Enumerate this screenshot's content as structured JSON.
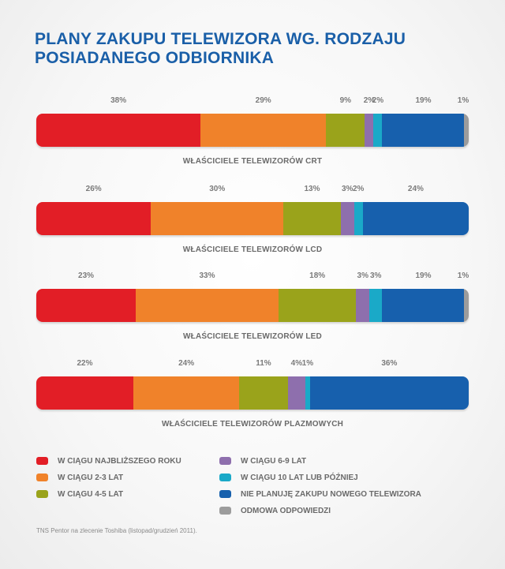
{
  "title": "PLANY ZAKUPU TELEWIZORA WG. RODZAJU POSIADANEGO ODBIORNIKA",
  "source": "TNS Pentor na zlecenie Toshiba (listopad/grudzień 2011).",
  "chart_data": {
    "type": "bar",
    "orientation": "horizontal-stacked",
    "unit": "%",
    "title": "PLANY ZAKUPU TELEWIZORA WG. RODZAJU POSIADANEGO ODBIORNIKA",
    "series_names": [
      "W CIĄGU NAJBLIŻSZEGO ROKU",
      "W CIĄGU 2-3 LAT",
      "W CIĄGU 4-5 LAT",
      "W CIĄGU 6-9 LAT",
      "W CIĄGU 10 LAT LUB PÓŹNIEJ",
      "NIE PLANUJĘ ZAKUPU NOWEGO TELEWIZORA",
      "ODMOWA ODPOWIEDZI"
    ],
    "colors": [
      "#e21e26",
      "#f0822a",
      "#9aa31b",
      "#8e6fad",
      "#1aa9c8",
      "#1760ad",
      "#9c9c9c"
    ],
    "bars": [
      {
        "label": "WŁAŚCICIELE TELEWIZORÓW CRT",
        "values": [
          38,
          29,
          9,
          2,
          2,
          19,
          1
        ]
      },
      {
        "label": "WŁAŚCICIELE TELEWIZORÓW LCD",
        "values": [
          26,
          30,
          13,
          3,
          2,
          24,
          0
        ]
      },
      {
        "label": "WŁAŚCICIELE TELEWIZORÓW LED",
        "values": [
          23,
          33,
          18,
          3,
          3,
          19,
          1
        ]
      },
      {
        "label": "WŁAŚCICIELE TELEWIZORÓW PLAZMOWYCH",
        "values": [
          22,
          24,
          11,
          4,
          1,
          36,
          0
        ]
      }
    ]
  }
}
